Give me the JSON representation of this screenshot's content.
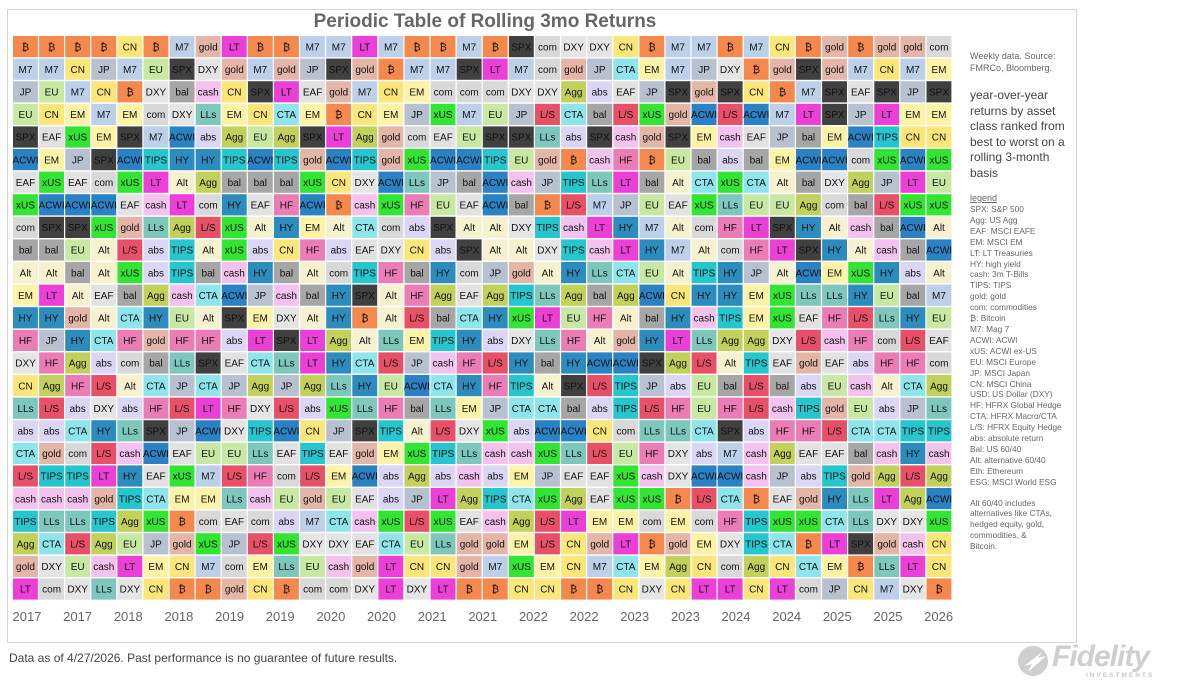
{
  "chart_data": {
    "type": "table",
    "title": "Periodic Table of Rolling 3mo Returns",
    "x_labels": [
      "2017",
      "2017",
      "2018",
      "2018",
      "2019",
      "2019",
      "2020",
      "2020",
      "2021",
      "2021",
      "2022",
      "2022",
      "2023",
      "2023",
      "2024",
      "2024",
      "2025",
      "2025",
      "2026"
    ],
    "rows": [
      [
        "₿",
        "₿",
        "₿",
        "₿",
        "CN",
        "₿",
        "M7",
        "gold",
        "LT",
        "₿",
        "₿",
        "M7",
        "M7",
        "LT",
        "M7",
        "₿",
        "₿",
        "M7",
        "₿",
        "SPX",
        "com",
        "DXY",
        "DXY",
        "CN",
        "₿",
        "M7",
        "M7",
        "₿",
        "M7",
        "CN",
        "₿",
        "gold",
        "₿",
        "gold",
        "gold",
        "com"
      ],
      [
        "M7",
        "M7",
        "CN",
        "JP",
        "M7",
        "EU",
        "SPX",
        "DXY",
        "gold",
        "M7",
        "gold",
        "JP",
        "SPX",
        "gold",
        "₿",
        "M7",
        "M7",
        "SPX",
        "LT",
        "M7",
        "com",
        "gold",
        "JP",
        "CTA",
        "EM",
        "M7",
        "JP",
        "DXY",
        "₿",
        "gold",
        "SPX",
        "gold",
        "M7",
        "CN",
        "M7",
        "EM"
      ],
      [
        "JP",
        "EU",
        "M7",
        "CN",
        "₿",
        "DXY",
        "bal",
        "cash",
        "CN",
        "SPX",
        "LT",
        "EAF",
        "gold",
        "M7",
        "CN",
        "EM",
        "com",
        "com",
        "com",
        "DXY",
        "DXY",
        "Agg",
        "abs",
        "EAF",
        "JP",
        "SPX",
        "gold",
        "SPX",
        "CN",
        "₿",
        "M7",
        "SPX",
        "EAF",
        "SPX",
        "JP",
        "SPX"
      ],
      [
        "EU",
        "CN",
        "EM",
        "M7",
        "EM",
        "com",
        "DXY",
        "LLs",
        "EM",
        "CN",
        "CTA",
        "EM",
        "₿",
        "CN",
        "EM",
        "JP",
        "xUS",
        "M7",
        "EU",
        "JP",
        "L/S",
        "CTA",
        "bal",
        "L/S",
        "xUS",
        "gold",
        "ACWI",
        "L/S",
        "ACWI",
        "M7",
        "LT",
        "SPX",
        "JP",
        "LT",
        "EM",
        "EM"
      ],
      [
        "SPX",
        "EAF",
        "xUS",
        "EM",
        "SPX",
        "M7",
        "ACWI",
        "abs",
        "Agg",
        "EU",
        "Agg",
        "SPX",
        "LT",
        "Agg",
        "gold",
        "com",
        "EAF",
        "EU",
        "SPX",
        "SPX",
        "LLs",
        "abs",
        "SPX",
        "cash",
        "gold",
        "SPX",
        "EM",
        "cash",
        "EAF",
        "JP",
        "bal",
        "EM",
        "ACWI",
        "TIPS",
        "CN",
        "CN"
      ],
      [
        "ACWI",
        "EM",
        "JP",
        "SPX",
        "ACWI",
        "TIPS",
        "HY",
        "HY",
        "TIPS",
        "ACWI",
        "TIPS",
        "gold",
        "ACWI",
        "TIPS",
        "gold",
        "xUS",
        "ACWI",
        "ACWI",
        "TIPS",
        "EU",
        "gold",
        "₿",
        "cash",
        "HF",
        "₿",
        "EU",
        "bal",
        "abs",
        "bal",
        "EM",
        "ACWI",
        "ACWI",
        "com",
        "xUS",
        "ACWI",
        "xUS"
      ],
      [
        "EAF",
        "xUS",
        "EAF",
        "com",
        "xUS",
        "LT",
        "Alt",
        "Agg",
        "bal",
        "bal",
        "bal",
        "xUS",
        "CN",
        "DXY",
        "ACWI",
        "LLs",
        "JP",
        "bal",
        "ACWI",
        "cash",
        "JP",
        "TIPS",
        "LLs",
        "LT",
        "bal",
        "Alt",
        "CTA",
        "xUS",
        "CTA",
        "Alt",
        "bal",
        "DXY",
        "Agg",
        "JP",
        "LT",
        "EU"
      ],
      [
        "xUS",
        "ACWI",
        "ACWI",
        "ACWI",
        "EAF",
        "cash",
        "LT",
        "com",
        "HY",
        "EAF",
        "HF",
        "ACWI",
        "₿",
        "cash",
        "xUS",
        "HF",
        "EU",
        "EAF",
        "ACWI",
        "bal",
        "₿",
        "L/S",
        "M7",
        "JP",
        "EU",
        "EAF",
        "xUS",
        "LLs",
        "EU",
        "EU",
        "Agg",
        "com",
        "bal",
        "L/S",
        "xUS",
        "xUS"
      ],
      [
        "com",
        "SPX",
        "SPX",
        "xUS",
        "gold",
        "LLs",
        "Agg",
        "L/S",
        "xUS",
        "Alt",
        "HY",
        "EM",
        "Alt",
        "CTA",
        "com",
        "abs",
        "SPX",
        "Alt",
        "Alt",
        "DXY",
        "TIPS",
        "cash",
        "LT",
        "HY",
        "M7",
        "Alt",
        "com",
        "HF",
        "LT",
        "SPX",
        "HY",
        "Alt",
        "cash",
        "bal",
        "ACWI",
        "Alt"
      ],
      [
        "bal",
        "bal",
        "EU",
        "Alt",
        "L/S",
        "abs",
        "TIPS",
        "Alt",
        "xUS",
        "abs",
        "CN",
        "HF",
        "abs",
        "EAF",
        "DXY",
        "CN",
        "abs",
        "SPX",
        "Alt",
        "Alt",
        "DXY",
        "TIPS",
        "cash",
        "LT",
        "HY",
        "M7",
        "Alt",
        "com",
        "HF",
        "LT",
        "SPX",
        "HY",
        "Alt",
        "cash",
        "bal",
        "ACWI"
      ],
      [
        "Alt",
        "Alt",
        "bal",
        "Alt",
        "xUS",
        "abs",
        "TIPS",
        "bal",
        "cash",
        "HY",
        "bal",
        "Alt",
        "com",
        "TIPS",
        "HF",
        "bal",
        "HY",
        "com",
        "JP",
        "gold",
        "Alt",
        "HY",
        "LLs",
        "CTA",
        "EU",
        "Alt",
        "TIPS",
        "HY",
        "JP",
        "Alt",
        "ACWI",
        "EM",
        "xUS",
        "HY",
        "abs",
        "Alt"
      ],
      [
        "EM",
        "LT",
        "Alt",
        "EAF",
        "bal",
        "Agg",
        "cash",
        "CTA",
        "ACWI",
        "JP",
        "cash",
        "bal",
        "HY",
        "SPX",
        "Alt",
        "HF",
        "Agg",
        "EAF",
        "Agg",
        "TIPS",
        "LLs",
        "Agg",
        "bal",
        "Agg",
        "ACWI",
        "CN",
        "HY",
        "HY",
        "EM",
        "xUS",
        "LLs",
        "LLs",
        "HY",
        "EU",
        "bal",
        "M7"
      ],
      [
        "HY",
        "HY",
        "gold",
        "Alt",
        "CTA",
        "HY",
        "EU",
        "Alt",
        "SPX",
        "EM",
        "DXY",
        "Alt",
        "HY",
        "₿",
        "Alt",
        "L/S",
        "bal",
        "CTA",
        "HY",
        "xUS",
        "LT",
        "EU",
        "HF",
        "Alt",
        "bal",
        "HY",
        "cash",
        "TIPS",
        "EM",
        "xUS",
        "EAF",
        "HF",
        "L/S",
        "LLs",
        "HY",
        "EU"
      ],
      [
        "HF",
        "JP",
        "HY",
        "CTA",
        "HF",
        "gold",
        "HF",
        "HF",
        "abs",
        "LT",
        "SPX",
        "LT",
        "Agg",
        "Alt",
        "LLs",
        "EM",
        "TIPS",
        "HY",
        "abs",
        "DXY",
        "LLs",
        "HF",
        "Alt",
        "gold",
        "HY",
        "LT",
        "LLs",
        "Agg",
        "Agg",
        "DXY",
        "L/S",
        "cash",
        "HF",
        "com",
        "L/S",
        "EAF"
      ],
      [
        "DXY",
        "HF",
        "Agg",
        "abs",
        "com",
        "bal",
        "LLs",
        "SPX",
        "EAF",
        "CTA",
        "LLs",
        "LT",
        "HY",
        "CTA",
        "L/S",
        "JP",
        "cash",
        "HF",
        "L/S",
        "HY",
        "bal",
        "HY",
        "ACWI",
        "ACWI",
        "SPX",
        "Agg",
        "L/S",
        "Alt",
        "TIPS",
        "EAF",
        "gold",
        "EAF",
        "abs",
        "HF",
        "HF",
        "com"
      ],
      [
        "CN",
        "Agg",
        "HF",
        "L/S",
        "Alt",
        "CTA",
        "JP",
        "CTA",
        "JP",
        "Agg",
        "JP",
        "Agg",
        "LLs",
        "HY",
        "EU",
        "ACWI",
        "CTA",
        "HY",
        "HF",
        "TIPS",
        "Alt",
        "SPX",
        "L/S",
        "TIPS",
        "JP",
        "abs",
        "EU",
        "bal",
        "L/S",
        "bal",
        "abs",
        "EU",
        "cash",
        "Alt",
        "CTA",
        "Agg"
      ],
      [
        "LLs",
        "L/S",
        "abs",
        "DXY",
        "abs",
        "HF",
        "L/S",
        "LT",
        "HF",
        "DXY",
        "L/S",
        "abs",
        "xUS",
        "LLs",
        "HF",
        "bal",
        "LLs",
        "EM",
        "JP",
        "CTA",
        "CTA",
        "bal",
        "abs",
        "TIPS",
        "L/S",
        "HF",
        "EU",
        "HF",
        "L/S",
        "cash",
        "TIPS",
        "gold",
        "EU",
        "abs",
        "JP",
        "LLs"
      ],
      [
        "abs",
        "abs",
        "CTA",
        "HY",
        "LLs",
        "SPX",
        "JP",
        "ACWI",
        "DXY",
        "TIPS",
        "ACWI",
        "CN",
        "JP",
        "SPX",
        "TIPS",
        "Alt",
        "L/S",
        "DXY",
        "xUS",
        "abs",
        "ACWI",
        "ACWI",
        "CN",
        "com",
        "LLs",
        "LLs",
        "CTA",
        "SPX",
        "abs",
        "HF",
        "HF",
        "L/S",
        "CTA",
        "CTA",
        "TIPS",
        "TIPS"
      ],
      [
        "CTA",
        "gold",
        "com",
        "L/S",
        "cash",
        "ACWI",
        "EAF",
        "EU",
        "EU",
        "LLs",
        "EAF",
        "TIPS",
        "EAF",
        "gold",
        "EM",
        "xUS",
        "TIPS",
        "LLs",
        "cash",
        "cash",
        "xUS",
        "LLs",
        "L/S",
        "EU",
        "HF",
        "DXY",
        "abs",
        "M7",
        "cash",
        "Agg",
        "EAF",
        "EAF",
        "bal",
        "cash",
        "HY",
        "cash"
      ],
      [
        "L/S",
        "TIPS",
        "TIPS",
        "LT",
        "HY",
        "EAF",
        "xUS",
        "M7",
        "L/S",
        "HF",
        "com",
        "L/S",
        "EM",
        "ACWI",
        "abs",
        "Agg",
        "abs",
        "cash",
        "abs",
        "EM",
        "JP",
        "EAF",
        "EAF",
        "xUS",
        "cash",
        "DXY",
        "ACWI",
        "ACWI",
        "cash",
        "JP",
        "abs",
        "TIPS",
        "gold",
        "Agg",
        "L/S",
        "Agg"
      ],
      [
        "cash",
        "cash",
        "cash",
        "gold",
        "TIPS",
        "CTA",
        "EM",
        "EM",
        "LLs",
        "cash",
        "EU",
        "gold",
        "EU",
        "EAF",
        "abs",
        "JP",
        "LT",
        "Agg",
        "TIPS",
        "CTA",
        "xUS",
        "Agg",
        "EAF",
        "xUS",
        "xUS",
        "₿",
        "L/S",
        "CTA",
        "₿",
        "EAF",
        "gold",
        "HY",
        "LLs",
        "LT",
        "Agg",
        "ACWI"
      ],
      [
        "TIPS",
        "LLs",
        "LLs",
        "TIPS",
        "Agg",
        "xUS",
        "₿",
        "com",
        "EAF",
        "com",
        "abs",
        "M7",
        "CTA",
        "cash",
        "xUS",
        "L/S",
        "xUS",
        "EAF",
        "cash",
        "Agg",
        "L/S",
        "LT",
        "EM",
        "EM",
        "com",
        "EM",
        "com",
        "HF",
        "TIPS",
        "xUS",
        "xUS",
        "CTA",
        "LLs",
        "DXY",
        "DXY",
        "xUS"
      ],
      [
        "Agg",
        "CTA",
        "L/S",
        "Agg",
        "EU",
        "JP",
        "gold",
        "xUS",
        "JP",
        "L/S",
        "xUS",
        "DXY",
        "DXY",
        "EAF",
        "CTA",
        "EU",
        "LLs",
        "gold",
        "gold",
        "EM",
        "L/S",
        "CN",
        "gold",
        "LT",
        "₿",
        "gold",
        "EM",
        "DXY",
        "TIPS",
        "CTA",
        "₿",
        "LT",
        "SPX",
        "gold",
        "cash",
        "CN"
      ],
      [
        "gold",
        "DXY",
        "EU",
        "cash",
        "LT",
        "EM",
        "CN",
        "M7",
        "com",
        "EM",
        "LLs",
        "EU",
        "cash",
        "gold",
        "LT",
        "CN",
        "CN",
        "gold",
        "M7",
        "xUS",
        "EM",
        "CN",
        "M7",
        "CTA",
        "EM",
        "Agg",
        "CN",
        "com",
        "Agg",
        "CN",
        "CTA",
        "EM",
        "₿",
        "LLs",
        "LT",
        "CN"
      ],
      [
        "LT",
        "com",
        "DXY",
        "LLs",
        "DXY",
        "CN",
        "₿",
        "₿",
        "gold",
        "CN",
        "₿",
        "com",
        "com",
        "DXY",
        "LT",
        "DXY",
        "LT",
        "₿",
        "₿",
        "CN",
        "CN",
        "₿",
        "₿",
        "CN",
        "DXY",
        "CN",
        "LT",
        "LT",
        "CN",
        "LT",
        "com",
        "JP",
        "CN",
        "M7",
        "DXY",
        "₿"
      ]
    ],
    "colors": {
      "₿": "#f5894d",
      "M7": "#bcd0ea",
      "CN": "#fbe67a",
      "JP": "#b7c1cf",
      "EU": "#c7e9a3",
      "SPX": "#404040",
      "gold": "#e3b6a8",
      "LT": "#eb3fd8",
      "DXY": "#e5e5e5",
      "EM": "#fdf3a7",
      "com": "#d9d9d9",
      "cash": "#f3c2ee",
      "bal": "#a6a6a6",
      "Agg": "#c1d15c",
      "EAF": "#e2e2e2",
      "CTA": "#8ee5ec",
      "xUS": "#33e533",
      "ACWI": "#2a82c4",
      "LLs": "#7ec7bd",
      "abs": "#dbd6f6",
      "TIPS": "#26c6cf",
      "HY": "#2c8cbd",
      "Alt": "#f6f1cf",
      "HF": "#ec7cb6",
      "L/S": "#e85068"
    },
    "dark_text": [
      "SPX",
      "ACWI",
      "HY",
      "bal"
    ]
  },
  "sidebar": {
    "source": [
      "Weekly data.  Source:",
      "FMRCo, Bloomberg."
    ],
    "description": [
      "year-over-year",
      "returns by asset",
      "class ranked from",
      "best to worst on a",
      "rolling 3-month",
      "basis"
    ],
    "legend_title": "legend",
    "legend": [
      "SPX: S&P 500",
      "Agg: US Agg",
      "EAF: MSCI EAFE",
      "EM: MSCI EM",
      "LT: LT Treasuries",
      "HY: high yield",
      "cash: 3m T-Bills",
      "TIPS:  TIPS",
      "gold: gold",
      "com: commodities",
      "₿: Bitcoin",
      "M7: Mag 7",
      "ACWI: ACWI",
      "xUS: ACWI ex-US",
      "EU: MSCI Europe",
      "JP: MSCI Japan",
      "CN: MSCI China",
      "USD: US Dollar (DXY)",
      "HF: HFRX Global Hedge",
      "CTA: HFRX Macro/CTA",
      "L/S: HFRX Equity Hedge",
      "abs: absolute return",
      "Bal: US 60/40",
      "Alt: alternative 60/40",
      "Eth: Ethereum",
      "ESG: MSCI World ESG"
    ],
    "note": [
      "Alt 60/40 includes",
      "alternatives like CTAs,",
      "hedged equity, gold,",
      "commodities, &",
      "Bitcoin."
    ]
  },
  "footer": "Data as of 4/27/2026. Past performance is no guarantee of future results.",
  "logo": {
    "name": "Fidelity",
    "sub": "INVESTMENTS"
  }
}
